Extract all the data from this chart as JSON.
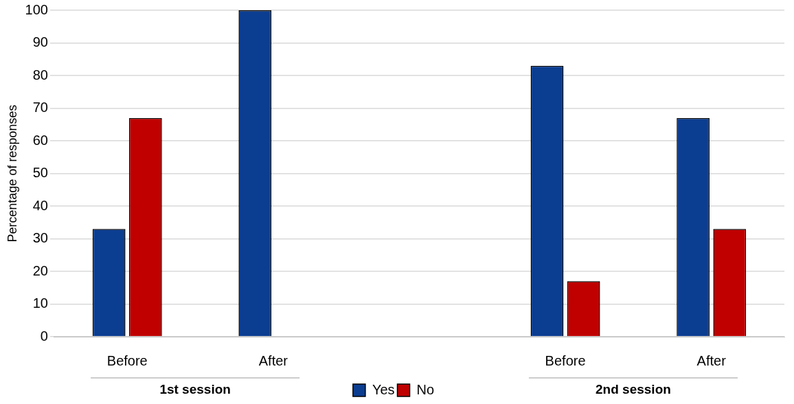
{
  "chart_data": {
    "type": "bar",
    "ylabel": "Percentage of responses",
    "categories": [
      "Before",
      "After",
      null,
      "Before",
      "After"
    ],
    "series": [
      {
        "name": "Yes",
        "color": "#0b3d91",
        "values": [
          33,
          100,
          null,
          83,
          67
        ]
      },
      {
        "name": "No",
        "color": "#c00000",
        "values": [
          67,
          0,
          null,
          17,
          33
        ]
      }
    ],
    "annotations": [
      "1st session",
      "2nd session"
    ],
    "ylim": [
      0,
      100
    ],
    "yticks": [
      0,
      10,
      20,
      30,
      40,
      50,
      60,
      70,
      80,
      90,
      100
    ],
    "grid": "y",
    "legend": "bottom"
  }
}
